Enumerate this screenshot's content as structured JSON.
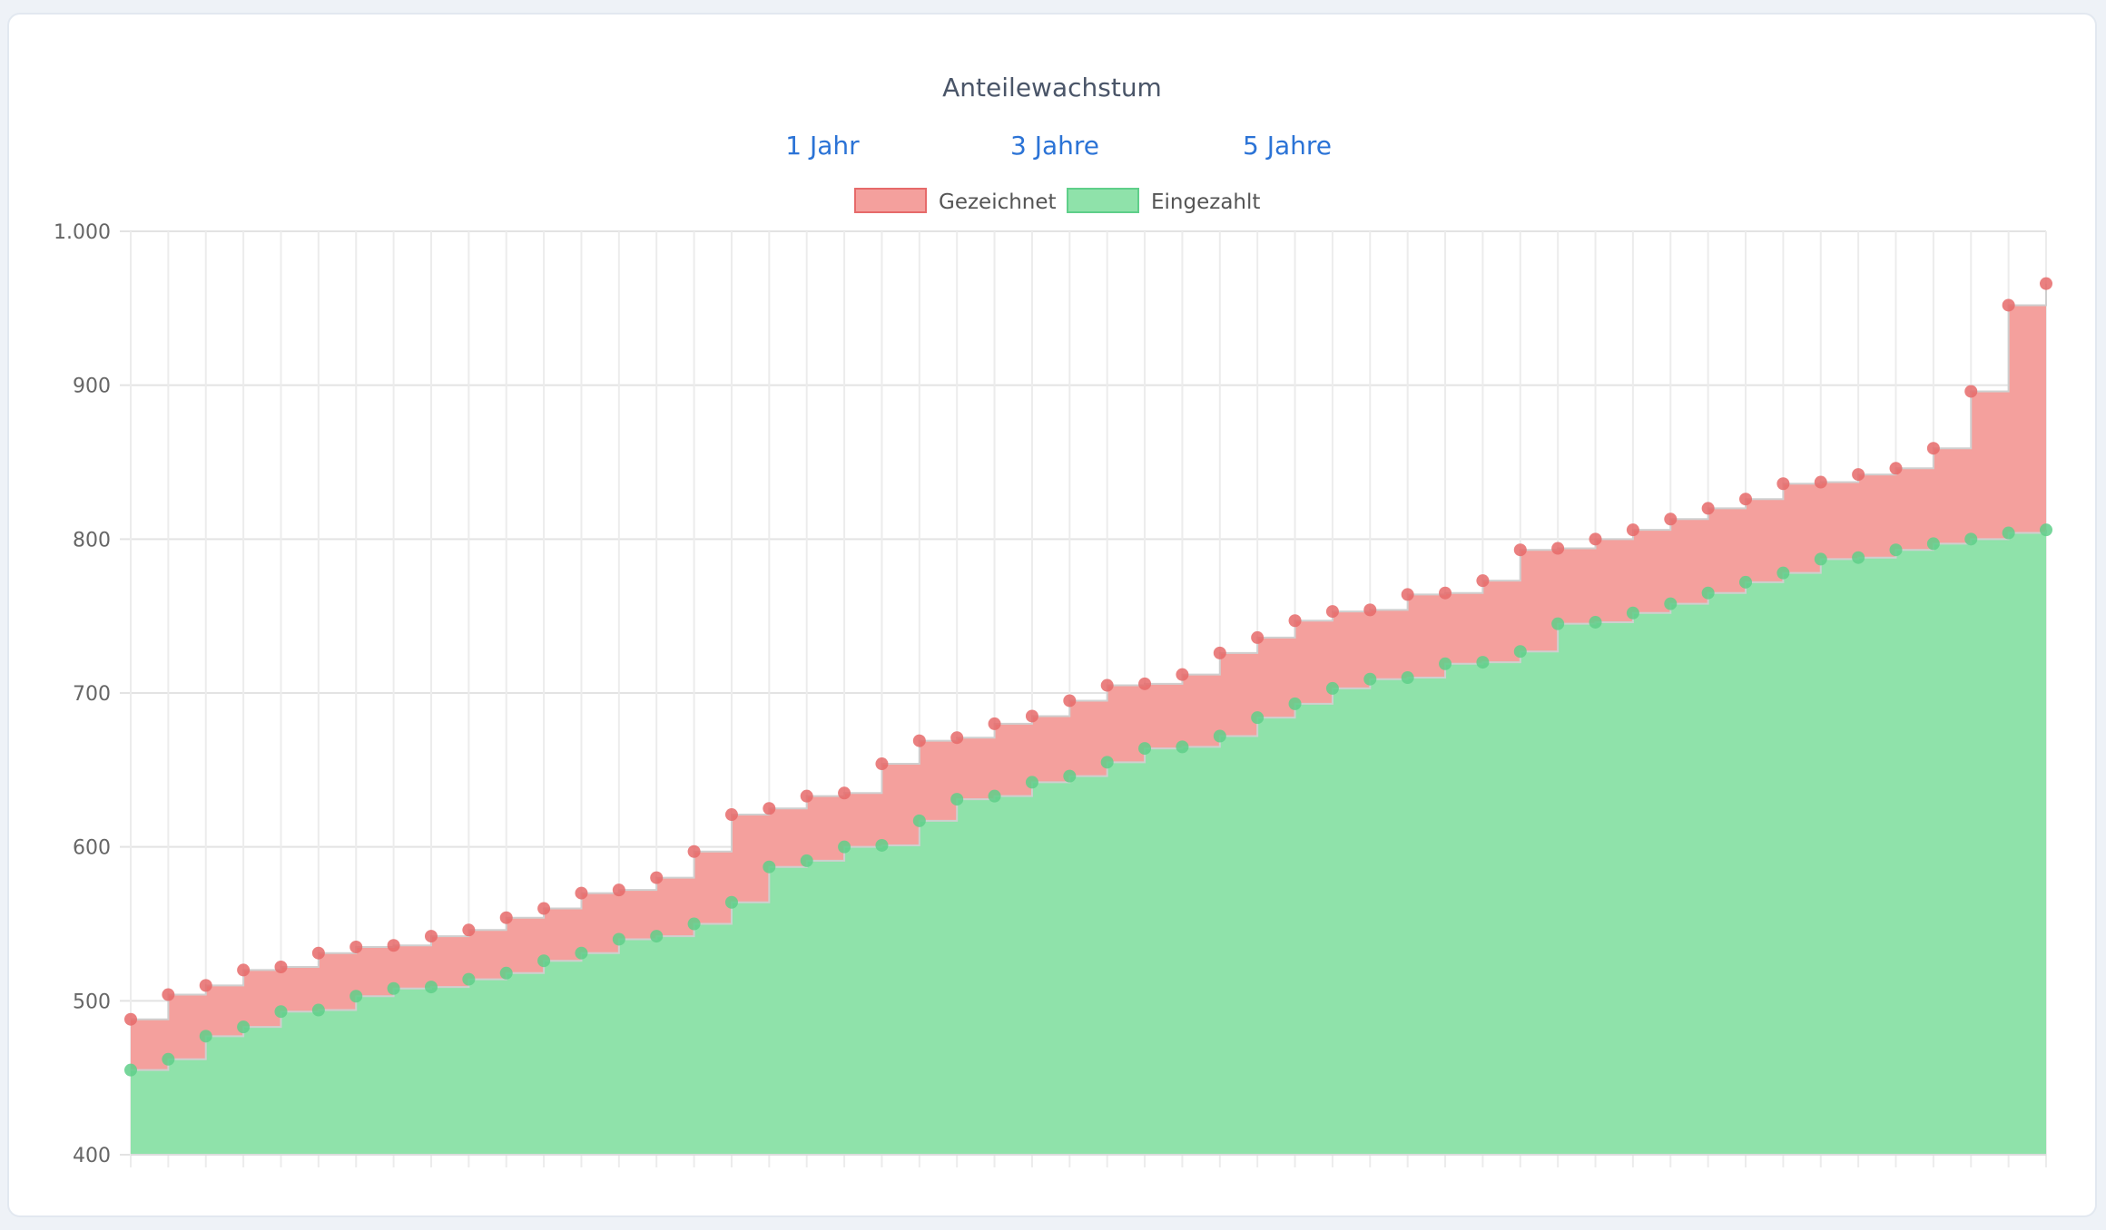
{
  "header": {
    "title": "Anteilewachstum",
    "ranges": [
      "1 Jahr",
      "3 Jahre",
      "5 Jahre"
    ]
  },
  "colors": {
    "gezeichnet_fill": "#f4a09d",
    "gezeichnet_line": "#e66a6a",
    "eingezahlt_fill": "#8fe2aa",
    "eingezahlt_line": "#5fcf8a",
    "link": "#2b73d6"
  },
  "chart_data": {
    "type": "area",
    "stepped": true,
    "ylim": [
      400,
      1000
    ],
    "y_ticks": [
      "1.000",
      "900",
      "800",
      "700",
      "600",
      "500",
      "400"
    ],
    "y_tick_values": [
      1000,
      900,
      800,
      700,
      600,
      500,
      400
    ],
    "legend": {
      "position": "top-center",
      "entries": [
        "Gezeichnet",
        "Eingezahlt"
      ]
    },
    "grid": true,
    "series": [
      {
        "name": "Gezeichnet",
        "values": [
          488,
          504,
          510,
          520,
          522,
          531,
          535,
          536,
          542,
          546,
          554,
          560,
          570,
          572,
          580,
          597,
          621,
          625,
          633,
          635,
          654,
          669,
          671,
          680,
          685,
          695,
          705,
          706,
          712,
          726,
          736,
          747,
          753,
          754,
          764,
          765,
          773,
          793,
          794,
          800,
          806,
          813,
          820,
          826,
          836,
          837,
          842,
          846,
          859,
          896,
          952,
          966
        ]
      },
      {
        "name": "Eingezahlt",
        "values": [
          455,
          462,
          477,
          483,
          493,
          494,
          503,
          508,
          509,
          514,
          518,
          526,
          531,
          540,
          542,
          550,
          564,
          587,
          591,
          600,
          601,
          617,
          631,
          633,
          642,
          646,
          655,
          664,
          665,
          672,
          684,
          693,
          703,
          709,
          710,
          719,
          720,
          727,
          745,
          746,
          752,
          758,
          765,
          772,
          778,
          787,
          788,
          793,
          797,
          800,
          804,
          806
        ]
      }
    ]
  }
}
